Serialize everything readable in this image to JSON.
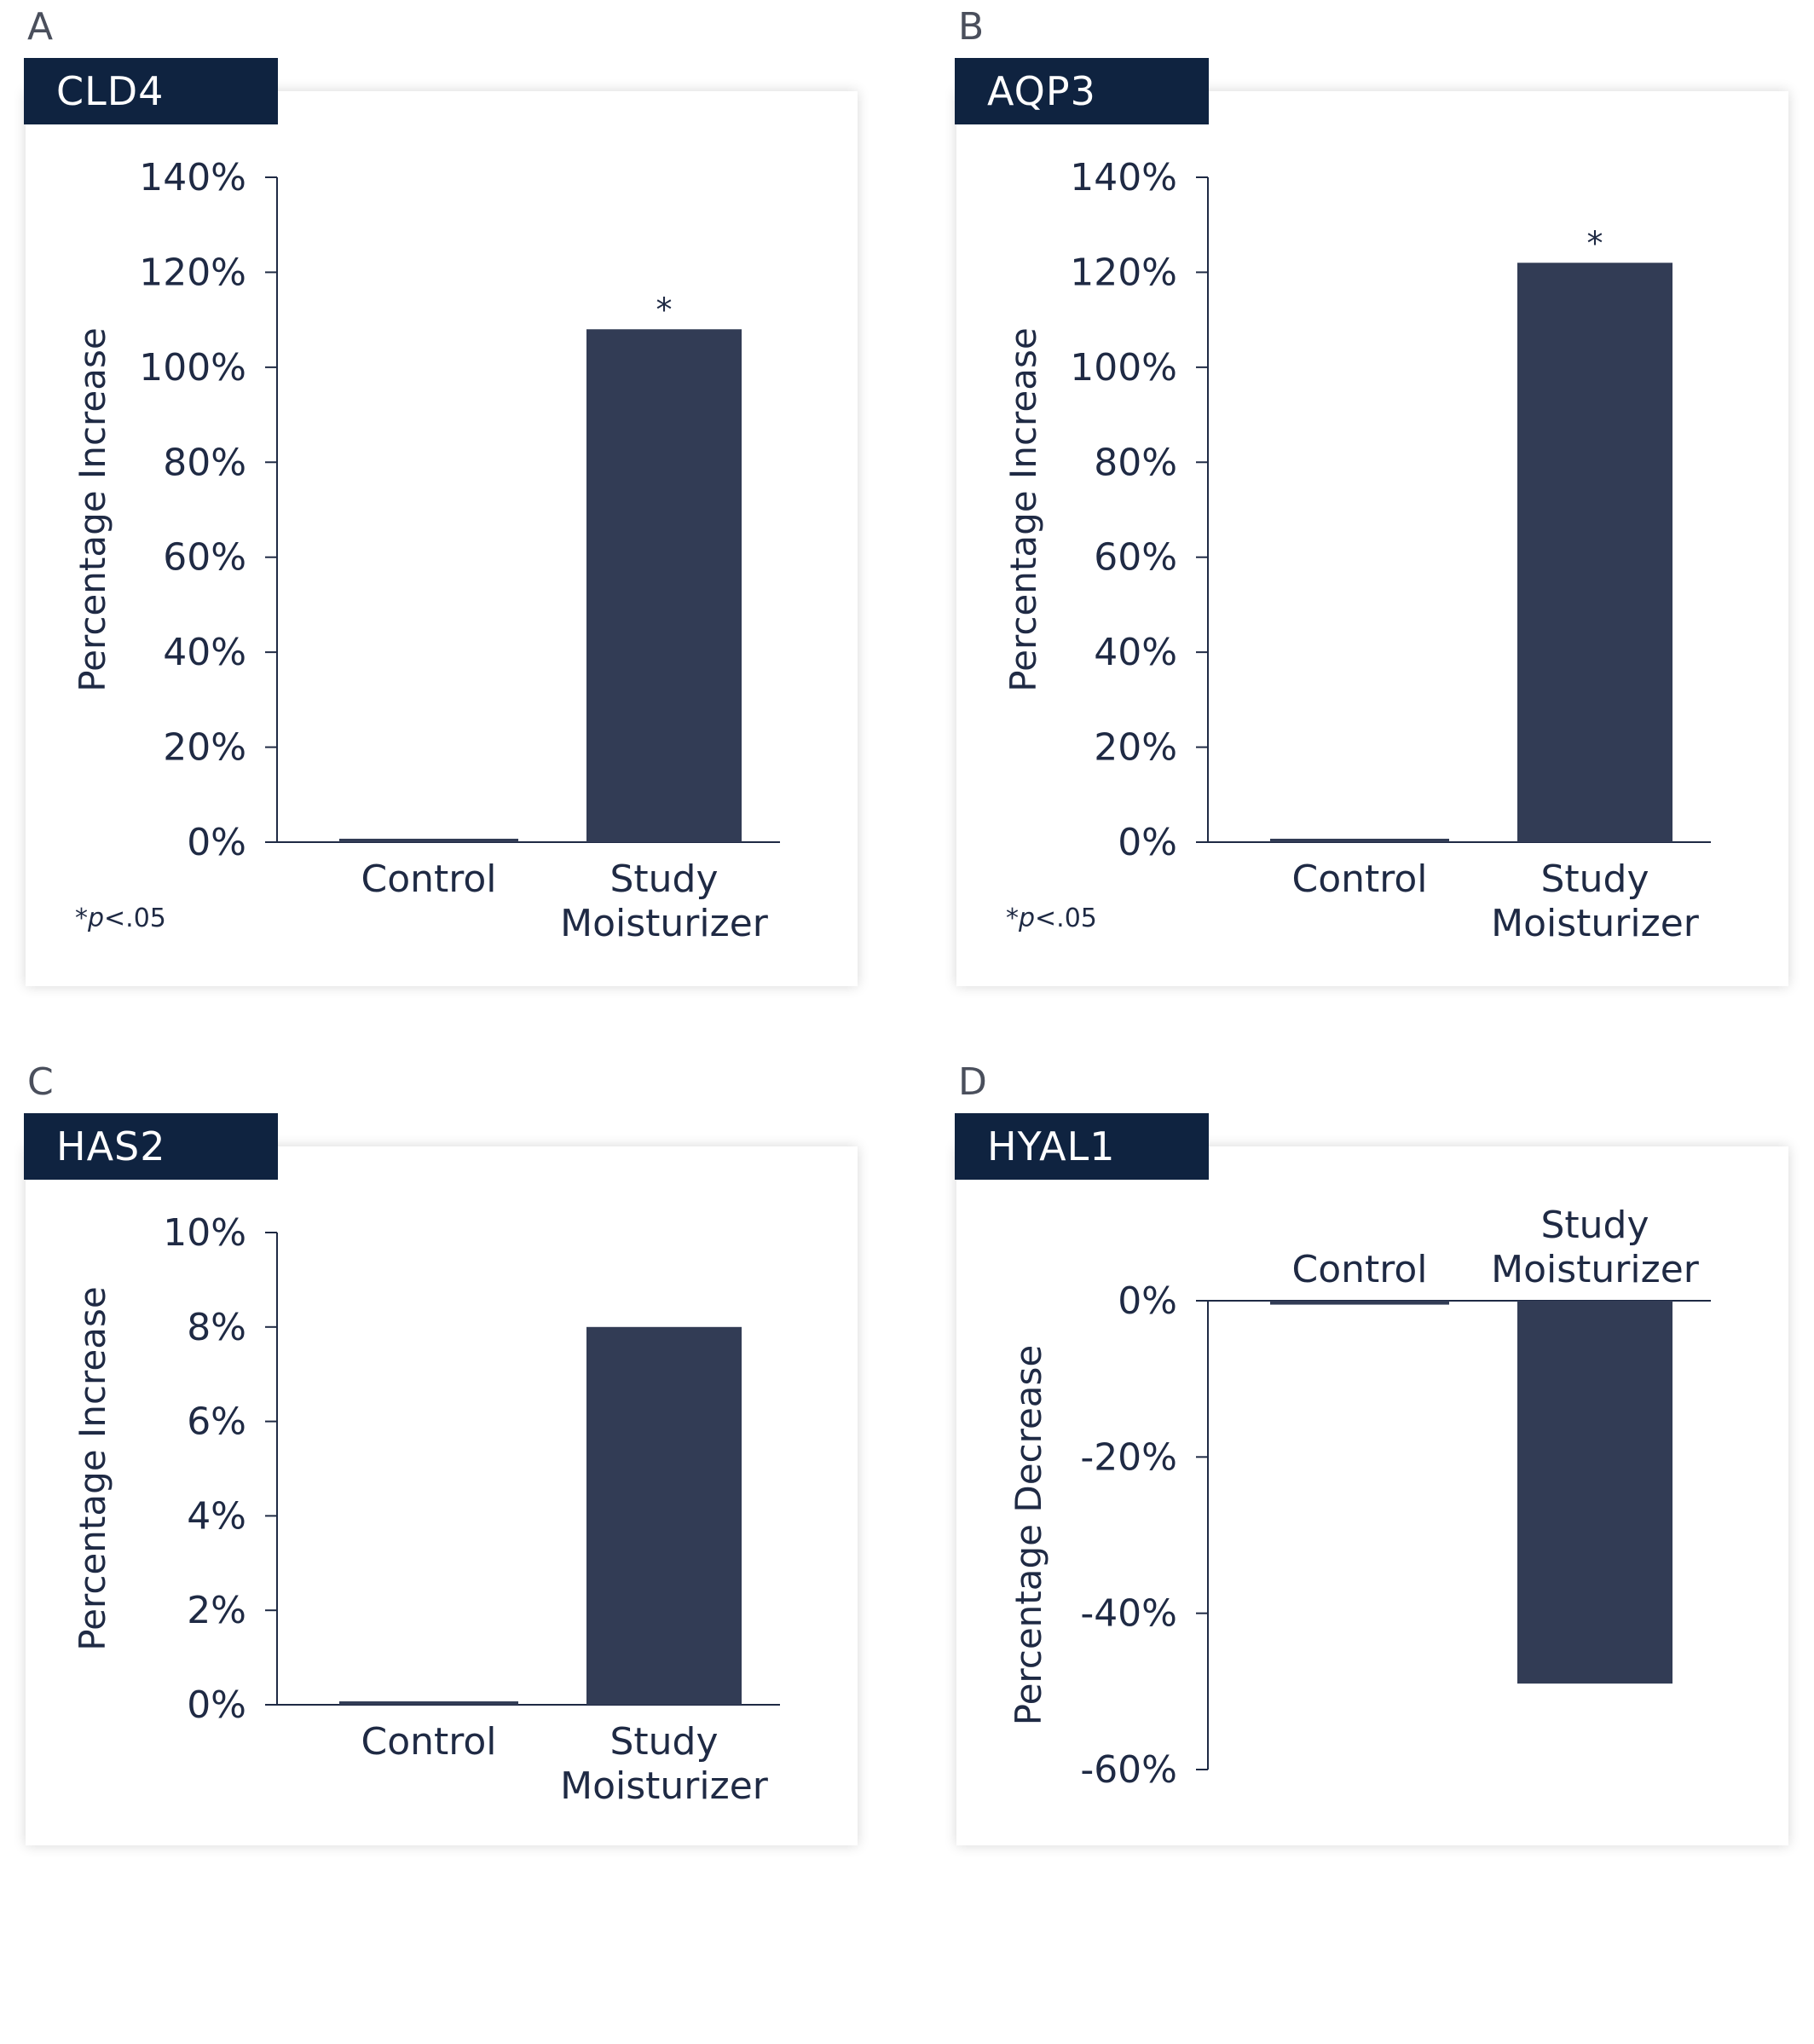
{
  "footnote": {
    "star": "*",
    "p": "p",
    "rest": "<.05"
  },
  "chart_data": [
    {
      "panel": "A",
      "title": "CLD4",
      "type": "bar",
      "categories": [
        [
          "Control"
        ],
        [
          "Study",
          "Moisturizer"
        ]
      ],
      "values": [
        0.5,
        108
      ],
      "significance": [
        "",
        "*"
      ],
      "ylabel": "Percentage Increase",
      "ylim": [
        0,
        140
      ],
      "yticks": [
        0,
        20,
        40,
        60,
        80,
        100,
        120,
        140
      ],
      "tick_suffix": "%",
      "footnote": true,
      "xlabels_position": "bottom"
    },
    {
      "panel": "B",
      "title": "AQP3",
      "type": "bar",
      "categories": [
        [
          "Control"
        ],
        [
          "Study",
          "Moisturizer"
        ]
      ],
      "values": [
        0.5,
        122
      ],
      "significance": [
        "",
        "*"
      ],
      "ylabel": "Percentage Increase",
      "ylim": [
        0,
        140
      ],
      "yticks": [
        0,
        20,
        40,
        60,
        80,
        100,
        120,
        140
      ],
      "tick_suffix": "%",
      "footnote": true,
      "xlabels_position": "bottom"
    },
    {
      "panel": "C",
      "title": "HAS2",
      "type": "bar",
      "categories": [
        [
          "Control"
        ],
        [
          "Study",
          "Moisturizer"
        ]
      ],
      "values": [
        0.05,
        8
      ],
      "significance": [
        "",
        ""
      ],
      "ylabel": "Percentage Increase",
      "ylim": [
        0,
        10
      ],
      "yticks": [
        0,
        2,
        4,
        6,
        8,
        10
      ],
      "tick_suffix": "%",
      "footnote": false,
      "xlabels_position": "bottom"
    },
    {
      "panel": "D",
      "title": "HYAL1",
      "type": "bar",
      "categories": [
        [
          "Control"
        ],
        [
          "Study",
          "Moisturizer"
        ]
      ],
      "values": [
        -0.5,
        -49
      ],
      "significance": [
        "",
        ""
      ],
      "ylabel": "Percentage Decrease",
      "ylim": [
        -60,
        0
      ],
      "yticks": [
        0,
        -20,
        -40,
        -60
      ],
      "tick_suffix": "%",
      "footnote": false,
      "xlabels_position": "top"
    }
  ]
}
